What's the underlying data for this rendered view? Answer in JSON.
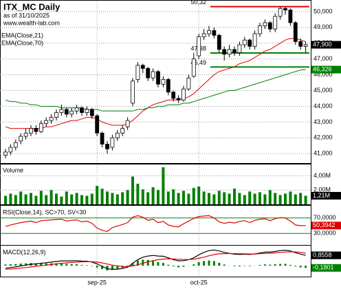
{
  "chart_data": [
    {
      "type": "candlestick",
      "title": "ITX_MC Daily",
      "subtitle": "as of 31/10/2025",
      "source": "www.wealth-lab.com",
      "categories": [
        null,
        null,
        null,
        null,
        null,
        null,
        null,
        null,
        null,
        null,
        null,
        null,
        null,
        null,
        null,
        null,
        null,
        null,
        "sep-25",
        null,
        null,
        null,
        null,
        null,
        null,
        null,
        null,
        null,
        null,
        null,
        null,
        null,
        null,
        null,
        null,
        null,
        null,
        null,
        "oct-25",
        null,
        null,
        null,
        null,
        null,
        null,
        null,
        null,
        null,
        null,
        null,
        null,
        null,
        null,
        null,
        null,
        null,
        null,
        null,
        null,
        null
      ],
      "open": [
        40.9,
        41.1,
        41.4,
        41.8,
        42.1,
        42.3,
        42.6,
        42.4,
        42.9,
        43.1,
        43.3,
        43.6,
        43.8,
        43.5,
        43.7,
        43.9,
        43.6,
        43.8,
        43.4,
        42.3,
        41.6,
        41.4,
        42.0,
        42.3,
        42.7,
        44.2,
        45.7,
        46.6,
        46.4,
        45.8,
        46.2,
        45.4,
        45.7,
        44.9,
        44.5,
        44.4,
        45.1,
        45.9,
        47.2,
        48.4,
        48.6,
        48.8,
        48.5,
        47.6,
        47.3,
        47.6,
        47.4,
        47.9,
        48.2,
        47.8,
        48.6,
        49.1,
        49.3,
        48.9,
        49.7,
        50.2,
        50.1,
        49.3,
        48.1,
        47.8
      ],
      "high": [
        41.3,
        41.6,
        41.9,
        42.3,
        42.6,
        42.8,
        42.8,
        43.1,
        43.3,
        43.5,
        43.8,
        44.1,
        43.9,
        43.9,
        44.1,
        44.0,
        44.0,
        43.9,
        43.5,
        42.4,
        41.8,
        42.2,
        42.5,
        42.8,
        43.3,
        45.8,
        46.8,
        46.7,
        46.5,
        46.4,
        46.3,
        45.9,
        45.8,
        45.0,
        44.7,
        45.3,
        46.0,
        47.4,
        48.6,
        48.9,
        49.1,
        49.0,
        48.6,
        47.8,
        47.9,
        47.8,
        48.1,
        48.4,
        48.3,
        48.8,
        49.3,
        49.5,
        49.4,
        49.9,
        50.32,
        50.3,
        50.2,
        49.4,
        48.3,
        48.1
      ],
      "low": [
        40.7,
        40.9,
        41.2,
        41.6,
        41.9,
        42.1,
        42.2,
        42.3,
        42.7,
        42.9,
        43.1,
        43.4,
        43.3,
        43.3,
        43.5,
        43.4,
        43.4,
        43.2,
        42.1,
        41.4,
        41.0,
        41.2,
        41.8,
        42.1,
        42.5,
        44.0,
        45.5,
        46.1,
        45.6,
        45.6,
        45.2,
        45.2,
        44.7,
        44.3,
        44.2,
        44.3,
        45.0,
        45.8,
        47.0,
        48.2,
        48.4,
        48.3,
        47.4,
        46.9,
        47.1,
        47.2,
        47.2,
        47.7,
        47.6,
        47.6,
        48.4,
        48.9,
        48.7,
        48.7,
        49.5,
        49.8,
        49.1,
        47.9,
        47.6,
        47.4
      ],
      "close": [
        41.1,
        41.4,
        41.7,
        42.1,
        42.3,
        42.6,
        42.4,
        42.9,
        43.1,
        43.3,
        43.6,
        43.8,
        43.5,
        43.7,
        43.9,
        43.6,
        43.8,
        43.4,
        42.3,
        41.6,
        41.3,
        42.0,
        42.3,
        42.6,
        43.1,
        45.6,
        46.6,
        46.4,
        45.8,
        46.2,
        45.4,
        45.7,
        44.9,
        44.5,
        44.4,
        45.1,
        45.8,
        47.0,
        48.4,
        48.6,
        48.8,
        48.5,
        47.6,
        47.3,
        47.6,
        47.4,
        47.9,
        48.2,
        47.8,
        48.6,
        49.1,
        49.3,
        48.9,
        49.7,
        50.2,
        50.1,
        49.3,
        48.1,
        47.8,
        47.9
      ],
      "close_label": "47,900",
      "series": [
        {
          "name": "EMA(Close,21)",
          "color": "#e00000",
          "values": [
            42.7,
            42.6,
            42.6,
            42.6,
            42.6,
            42.6,
            42.6,
            42.6,
            42.7,
            42.7,
            42.8,
            42.9,
            43.0,
            43.1,
            43.1,
            43.2,
            43.3,
            43.3,
            43.2,
            43.0,
            42.9,
            42.8,
            42.8,
            42.8,
            42.9,
            43.1,
            43.4,
            43.7,
            43.9,
            44.1,
            44.2,
            44.3,
            44.4,
            44.4,
            44.4,
            44.5,
            44.6,
            44.8,
            45.1,
            45.4,
            45.7,
            46.0,
            46.2,
            46.3,
            46.4,
            46.5,
            46.7,
            46.8,
            46.9,
            47.1,
            47.3,
            47.5,
            47.6,
            47.8,
            48.0,
            48.2,
            48.3,
            48.3,
            48.2,
            48.1
          ]
        },
        {
          "name": "EMA(Close,70)",
          "color": "#008000",
          "last_label": "46,326",
          "values": [
            44.4,
            44.3,
            44.3,
            44.2,
            44.2,
            44.1,
            44.1,
            44.0,
            44.0,
            44.0,
            44.0,
            43.9,
            43.9,
            43.9,
            43.9,
            43.9,
            43.8,
            43.8,
            43.8,
            43.7,
            43.7,
            43.7,
            43.7,
            43.7,
            43.7,
            43.7,
            43.8,
            43.8,
            43.9,
            43.9,
            44.0,
            44.0,
            44.1,
            44.1,
            44.1,
            44.2,
            44.2,
            44.3,
            44.4,
            44.5,
            44.6,
            44.7,
            44.8,
            44.9,
            45.0,
            45.0,
            45.1,
            45.2,
            45.3,
            45.4,
            45.5,
            45.6,
            45.7,
            45.8,
            45.9,
            46.0,
            46.1,
            46.2,
            46.3,
            46.326
          ]
        }
      ],
      "annotations": [
        {
          "value": 50.32,
          "label": "50,32",
          "color": "#e00000"
        },
        {
          "value": 47.38,
          "label": "47,38",
          "color": "#008000"
        },
        {
          "value": 46.49,
          "label": "46,49",
          "color": "#008000"
        }
      ],
      "ylim": [
        40.4,
        50.65
      ],
      "yticks": [
        {
          "value": 41,
          "label": "41,000"
        },
        {
          "value": 42,
          "label": "42,000"
        },
        {
          "value": 43,
          "label": "43,000"
        },
        {
          "value": 44,
          "label": "44,000"
        },
        {
          "value": 45,
          "label": "45,000"
        },
        {
          "value": 46,
          "label": "46,000"
        },
        {
          "value": 47,
          "label": "47,000"
        },
        {
          "value": 48,
          "label": "48,000"
        },
        {
          "value": 49,
          "label": "49,000"
        },
        {
          "value": 50,
          "label": "50,000"
        }
      ],
      "grid": true
    },
    {
      "type": "bar",
      "title": "Volume",
      "color": "#008000",
      "last_label": "1,21M",
      "values": [
        1.2,
        1.5,
        1.3,
        1.8,
        1.4,
        1.6,
        1.2,
        1.9,
        1.3,
        2.0,
        1.5,
        1.1,
        1.8,
        1.4,
        1.6,
        1.3,
        1.2,
        1.5,
        2.6,
        2.2,
        1.8,
        1.6,
        1.4,
        1.7,
        2.0,
        3.9,
        2.9,
        2.1,
        1.7,
        2.4,
        2.0,
        5.2,
        1.8,
        2.1,
        1.6,
        1.9,
        1.5,
        2.3,
        2.5,
        1.8,
        1.6,
        1.4,
        1.9,
        1.7,
        1.5,
        2.2,
        1.6,
        1.3,
        1.8,
        1.5,
        1.7,
        1.4,
        2.0,
        1.6,
        1.3,
        1.5,
        1.8,
        1.4,
        1.6,
        1.21
      ],
      "ylim": [
        0,
        5.5
      ],
      "yticks": [
        {
          "value": 2,
          "label": "2,00M"
        },
        {
          "value": 4,
          "label": "4,00M"
        }
      ]
    },
    {
      "type": "line",
      "title": "RSI(Close,14), SC>70, SV<30",
      "band_color": "#008000",
      "series": [
        {
          "color": "#e00000",
          "last_label": "50,3942",
          "values": [
            48,
            52,
            55,
            58,
            60,
            62,
            58,
            63,
            64,
            65,
            66,
            67,
            62,
            64,
            65,
            60,
            62,
            56,
            44,
            38,
            35,
            45,
            49,
            53,
            58,
            72,
            76,
            72,
            64,
            67,
            58,
            61,
            52,
            48,
            47,
            55,
            62,
            69,
            74,
            75,
            76,
            70,
            60,
            56,
            59,
            57,
            61,
            63,
            58,
            64,
            67,
            68,
            63,
            68,
            71,
            70,
            62,
            52,
            50,
            50.3942
          ]
        }
      ],
      "ylim": [
        0,
        100
      ],
      "yticks": [
        {
          "value": 30,
          "label": "30,0000"
        },
        {
          "value": 70,
          "label": "70,0000"
        }
      ]
    },
    {
      "type": "line",
      "title": "MACD(12,26,9)",
      "series": [
        {
          "color": "#008000",
          "style": "bar",
          "last_label": "-0,1801",
          "values": [
            0.1,
            0.12,
            0.14,
            0.18,
            0.2,
            0.22,
            0.2,
            0.2,
            0.2,
            0.2,
            0.2,
            0.2,
            0.16,
            0.13,
            0.12,
            0.06,
            0.04,
            -0.03,
            -0.15,
            -0.28,
            -0.39,
            -0.35,
            -0.26,
            -0.16,
            -0.05,
            0.22,
            0.42,
            0.5,
            0.48,
            0.43,
            0.3,
            0.23,
            0.08,
            -0.06,
            -0.13,
            -0.09,
            -0.01,
            0.11,
            0.29,
            0.39,
            0.43,
            0.38,
            0.24,
            0.1,
            0.01,
            -0.05,
            -0.06,
            -0.03,
            -0.04,
            0.01,
            0.06,
            0.11,
            0.09,
            0.12,
            0.15,
            0.15,
            0.07,
            -0.06,
            -0.14,
            -0.1801
          ]
        },
        {
          "color": "#000000",
          "last_label": "0,8558",
          "values": [
            -0.2,
            -0.15,
            -0.1,
            -0.02,
            0.05,
            0.12,
            0.15,
            0.2,
            0.25,
            0.3,
            0.35,
            0.4,
            0.4,
            0.4,
            0.42,
            0.38,
            0.37,
            0.3,
            0.15,
            -0.05,
            -0.25,
            -0.3,
            -0.28,
            -0.22,
            -0.12,
            0.2,
            0.5,
            0.7,
            0.8,
            0.85,
            0.8,
            0.78,
            0.65,
            0.5,
            0.4,
            0.42,
            0.5,
            0.65,
            0.9,
            1.1,
            1.25,
            1.3,
            1.22,
            1.1,
            1.02,
            0.95,
            0.93,
            0.95,
            0.93,
            0.98,
            1.05,
            1.12,
            1.12,
            1.18,
            1.25,
            1.28,
            1.22,
            1.08,
            0.96,
            0.8558
          ]
        },
        {
          "color": "#e00000",
          "values": [
            -0.3,
            -0.27,
            -0.24,
            -0.2,
            -0.15,
            -0.1,
            -0.05,
            0.0,
            0.05,
            0.1,
            0.15,
            0.2,
            0.24,
            0.27,
            0.3,
            0.32,
            0.33,
            0.33,
            0.3,
            0.23,
            0.14,
            0.05,
            -0.02,
            -0.06,
            -0.07,
            -0.02,
            0.08,
            0.2,
            0.32,
            0.42,
            0.5,
            0.55,
            0.57,
            0.56,
            0.53,
            0.51,
            0.51,
            0.54,
            0.61,
            0.71,
            0.82,
            0.92,
            0.98,
            1.0,
            1.01,
            1.0,
            0.99,
            0.98,
            0.97,
            0.97,
            0.99,
            1.01,
            1.03,
            1.06,
            1.1,
            1.13,
            1.15,
            1.14,
            1.1,
            1.0359
          ]
        }
      ],
      "ylim": [
        -0.9,
        1.6
      ],
      "yticks": []
    }
  ]
}
